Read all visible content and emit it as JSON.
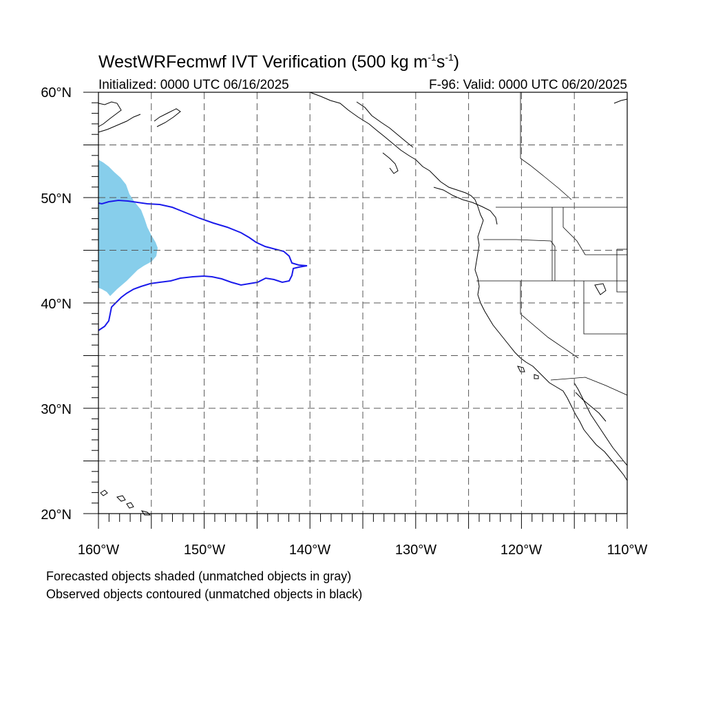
{
  "title": {
    "main": "WestWRFecmwf IVT Verification (500 kg m",
    "exp1": "-1",
    "mid": "s",
    "exp2": "-1",
    "close": ")"
  },
  "subtitle": {
    "left": "Initialized: 0000 UTC 06/16/2025",
    "right": "F-96: Valid: 0000 UTC 06/20/2025"
  },
  "axes": {
    "lat_labels": [
      "60°N",
      "50°N",
      "40°N",
      "30°N",
      "20°N"
    ],
    "lon_labels": [
      "160°W",
      "150°W",
      "140°W",
      "130°W",
      "120°W",
      "110°W"
    ],
    "lat_range": [
      20,
      60
    ],
    "lon_range": [
      -160,
      -110
    ],
    "grid_spacing_deg": 5,
    "grid": "dashed"
  },
  "legend": {
    "line1": "Forecasted objects shaded (unmatched objects in gray)",
    "line2": "Observed objects contoured (unmatched objects in black)"
  },
  "colors": {
    "forecast_fill": "#87ceeb",
    "observed_contour": "#1a1aeb",
    "coast": "#000000",
    "grid": "#555555"
  }
}
